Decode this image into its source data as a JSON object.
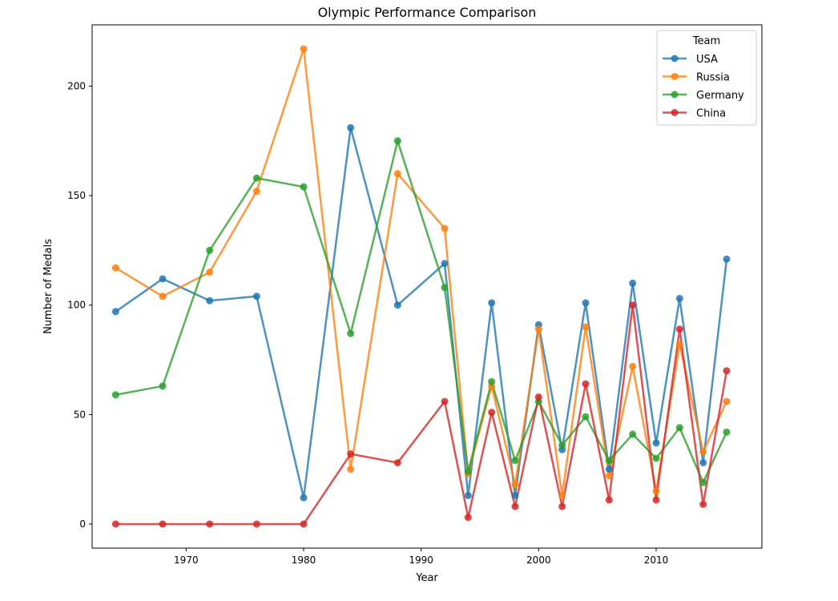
{
  "chart_data": {
    "type": "line",
    "title": "Olympic Performance Comparison",
    "xlabel": "Year",
    "ylabel": "Number of Medals",
    "xlim": [
      1962,
      2019
    ],
    "ylim": [
      -11,
      228
    ],
    "xticks": [
      1970,
      1980,
      1990,
      2000,
      2010
    ],
    "yticks": [
      0,
      50,
      100,
      150,
      200
    ],
    "grid": false,
    "legend": {
      "title": "Team",
      "placement": "top-right"
    },
    "x": [
      1964,
      1968,
      1972,
      1976,
      1980,
      1984,
      1988,
      1992,
      1994,
      1996,
      1998,
      2000,
      2002,
      2004,
      2006,
      2008,
      2010,
      2012,
      2014,
      2016
    ],
    "series": [
      {
        "name": "USA",
        "color": "#1f77b4",
        "values": [
          97,
          112,
          102,
          104,
          12,
          181,
          100,
          119,
          13,
          101,
          13,
          91,
          34,
          101,
          25,
          110,
          37,
          103,
          28,
          121
        ]
      },
      {
        "name": "Russia",
        "color": "#ff7f0e",
        "values": [
          117,
          104,
          115,
          152,
          217,
          25,
          160,
          135,
          23,
          63,
          18,
          89,
          13,
          90,
          22,
          72,
          15,
          82,
          33,
          56
        ]
      },
      {
        "name": "Germany",
        "color": "#2ca02c",
        "values": [
          59,
          63,
          125,
          158,
          154,
          87,
          175,
          108,
          24,
          65,
          29,
          56,
          36,
          49,
          29,
          41,
          30,
          44,
          19,
          42
        ]
      },
      {
        "name": "China",
        "color": "#d62728",
        "values": [
          0,
          0,
          0,
          0,
          0,
          32,
          28,
          56,
          3,
          51,
          8,
          58,
          8,
          64,
          11,
          100,
          11,
          89,
          9,
          70
        ]
      }
    ]
  }
}
